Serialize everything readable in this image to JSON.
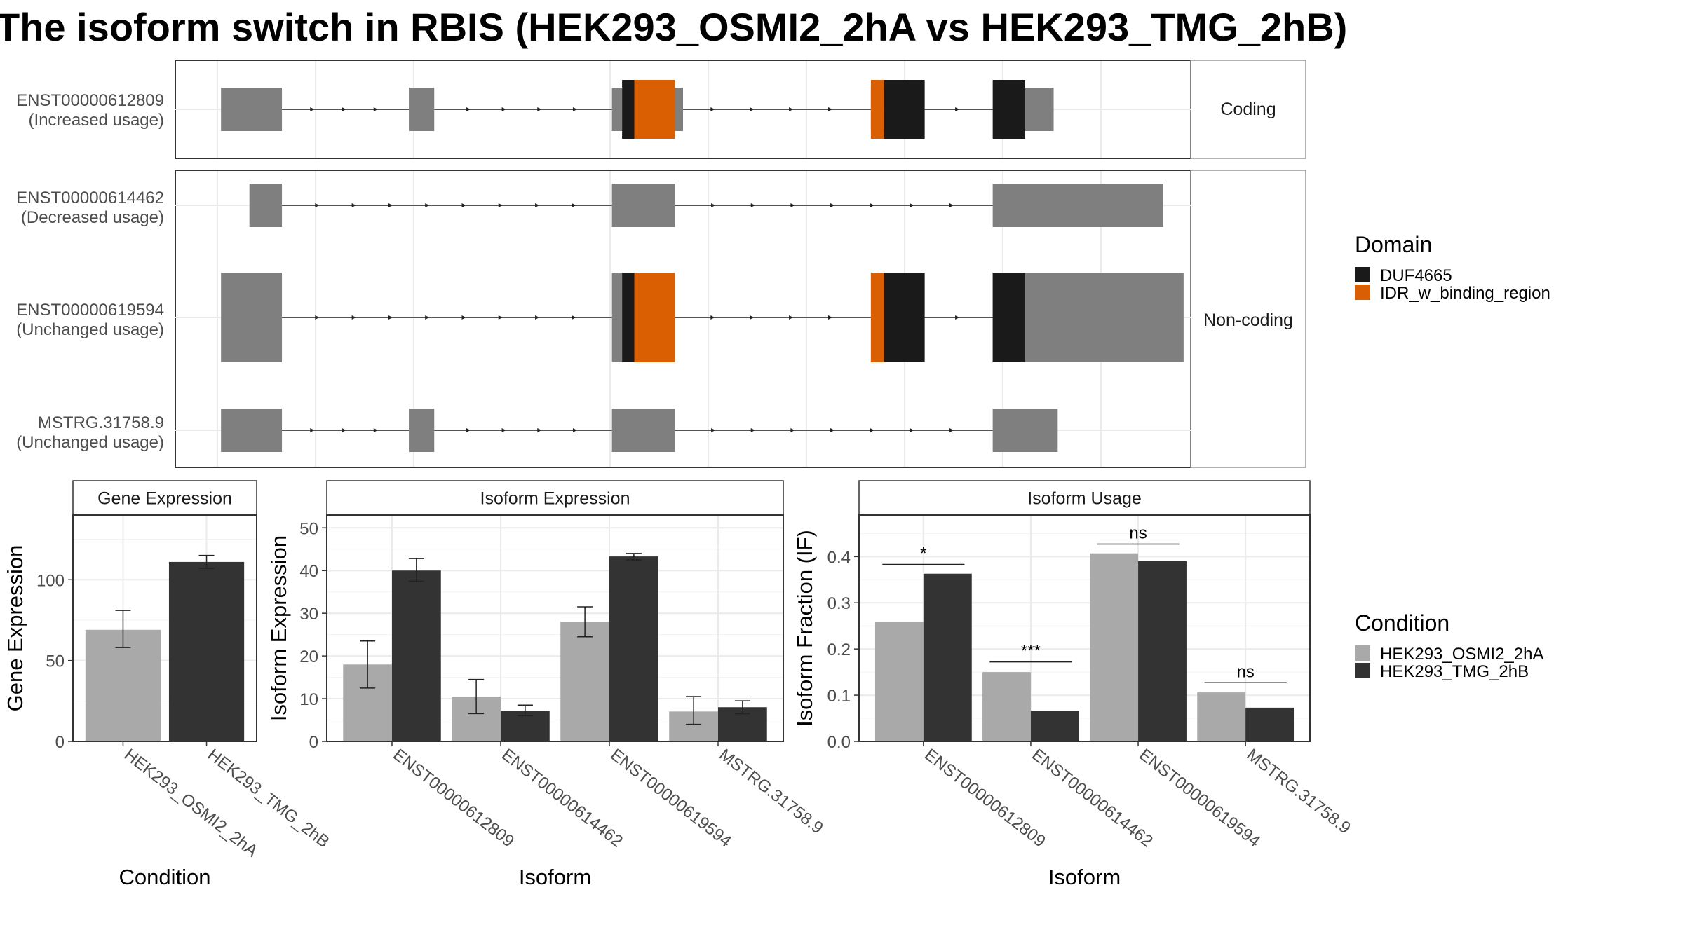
{
  "figure_title": "The isoform switch in RBIS (HEK293_OSMI2_2hA vs HEK293_TMG_2hB)",
  "colors": {
    "exon": "#7f7f7f",
    "DUF4665": "#1a1a1a",
    "IDR_w_binding_region": "#d95f02",
    "cond_A": "#a9a9a9",
    "cond_B": "#333333",
    "panel_border": "#333333",
    "strip_bg": "#ffffff",
    "grid": "#ebebeb"
  },
  "transcripts": [
    {
      "id": "ENST00000612809",
      "usage": "(Increased usage)",
      "facet": "coding"
    },
    {
      "id": "ENST00000614462",
      "usage": "(Decreased usage)",
      "facet": "noncoding"
    },
    {
      "id": "ENST00000619594",
      "usage": "(Unchanged usage)",
      "facet": "noncoding"
    },
    {
      "id": "MSTRG.31758.9",
      "usage": "(Unchanged usage)",
      "facet": "noncoding"
    }
  ],
  "facet_labels": {
    "coding": "Coding",
    "noncoding": "Non-coding"
  },
  "structure": {
    "coord_range": [
      0,
      100
    ],
    "transcripts": [
      {
        "exons": [
          [
            4.5,
            10.5
          ],
          [
            23,
            25.5
          ],
          [
            43,
            44
          ],
          [
            48,
            50
          ],
          [
            68.5,
            69.8
          ],
          [
            82.5,
            86.5
          ]
        ],
        "domains": [
          [
            44,
            45.2,
            "DUF4665"
          ],
          [
            45.2,
            49.2,
            "IDR_w_binding_region"
          ],
          [
            68.5,
            69.8,
            "IDR_w_binding_region"
          ],
          [
            69.8,
            73.8,
            "DUF4665"
          ],
          [
            80.5,
            83.7,
            "DUF4665"
          ]
        ],
        "introns": [
          [
            10.5,
            23
          ],
          [
            25.5,
            43
          ],
          [
            49.2,
            68.5
          ],
          [
            73.8,
            80.5
          ]
        ]
      },
      {
        "exons": [
          [
            7.3,
            10.5
          ],
          [
            43,
            49.2
          ],
          [
            80.5,
            97.3
          ]
        ],
        "domains": [],
        "introns": [
          [
            10.5,
            43
          ],
          [
            49.2,
            80.5
          ]
        ]
      },
      {
        "exons": [
          [
            4.5,
            10.5
          ],
          [
            43,
            44
          ],
          [
            80.5,
            99.3
          ]
        ],
        "domains": [
          [
            44,
            45.2,
            "DUF4665"
          ],
          [
            45.2,
            49.2,
            "IDR_w_binding_region"
          ],
          [
            68.5,
            69.8,
            "IDR_w_binding_region"
          ],
          [
            69.8,
            73.8,
            "DUF4665"
          ],
          [
            80.5,
            83.7,
            "DUF4665"
          ]
        ],
        "introns": [
          [
            10.5,
            43
          ],
          [
            49.2,
            68.5
          ],
          [
            73.8,
            80.5
          ]
        ]
      },
      {
        "exons": [
          [
            4.5,
            10.5
          ],
          [
            23,
            25.5
          ],
          [
            43,
            49.2
          ],
          [
            80.5,
            86.9
          ]
        ],
        "domains": [],
        "introns": [
          [
            10.5,
            23
          ],
          [
            25.5,
            43
          ],
          [
            49.2,
            80.5
          ]
        ]
      }
    ]
  },
  "legend_domain": {
    "title": "Domain",
    "items": [
      {
        "label": "DUF4665",
        "key": "DUF4665"
      },
      {
        "label": "IDR_w_binding_region",
        "key": "IDR_w_binding_region"
      }
    ]
  },
  "legend_condition": {
    "title": "Condition",
    "items": [
      {
        "label": "HEK293_OSMI2_2hA",
        "key": "cond_A"
      },
      {
        "label": "HEK293_TMG_2hB",
        "key": "cond_B"
      }
    ]
  },
  "chart_data": [
    {
      "type": "bar",
      "title": "Gene Expression",
      "xlabel": "Condition",
      "ylabel": "Gene Expression",
      "ylim": [
        0,
        140
      ],
      "yticks": [
        0,
        50,
        100
      ],
      "categories": [
        "HEK293_OSMI2_2hA",
        "HEK293_TMG_2hB"
      ],
      "values": [
        69,
        111
      ],
      "errors": [
        [
          58,
          81
        ],
        [
          107,
          115
        ]
      ]
    },
    {
      "type": "bar",
      "title": "Isoform Expression",
      "xlabel": "Isoform",
      "ylabel": "Isoform Expression",
      "ylim": [
        0,
        53
      ],
      "yticks": [
        0,
        10,
        20,
        30,
        40,
        50
      ],
      "categories": [
        "ENST00000612809",
        "ENST00000614462",
        "ENST00000619594",
        "MSTRG.31758.9"
      ],
      "series": [
        {
          "name": "HEK293_OSMI2_2hA",
          "values": [
            18,
            10.5,
            28,
            7
          ],
          "errors": [
            [
              12.5,
              23.5
            ],
            [
              6.5,
              14.5
            ],
            [
              24.5,
              31.5
            ],
            [
              4,
              10.5
            ]
          ]
        },
        {
          "name": "HEK293_TMG_2hB",
          "values": [
            40,
            7.2,
            43.3,
            8
          ],
          "errors": [
            [
              37.5,
              42.8
            ],
            [
              6,
              8.5
            ],
            [
              42.5,
              44
            ],
            [
              6.5,
              9.5
            ]
          ]
        }
      ]
    },
    {
      "type": "bar",
      "title": "Isoform Usage",
      "xlabel": "Isoform",
      "ylabel": "Isoform Fraction (IF)",
      "ylim": [
        0,
        0.49
      ],
      "yticks": [
        "0.0",
        "0.1",
        "0.2",
        "0.3",
        "0.4"
      ],
      "categories": [
        "ENST00000612809",
        "ENST00000614462",
        "ENST00000619594",
        "MSTRG.31758.9"
      ],
      "series": [
        {
          "name": "HEK293_OSMI2_2hA",
          "values": [
            0.258,
            0.15,
            0.407,
            0.106
          ]
        },
        {
          "name": "HEK293_TMG_2hB",
          "values": [
            0.363,
            0.066,
            0.39,
            0.073
          ]
        }
      ],
      "significance": [
        {
          "label": "*",
          "y": 0.383
        },
        {
          "label": "***",
          "y": 0.172
        },
        {
          "label": "ns",
          "y": 0.427
        },
        {
          "label": "ns",
          "y": 0.127
        }
      ]
    }
  ]
}
